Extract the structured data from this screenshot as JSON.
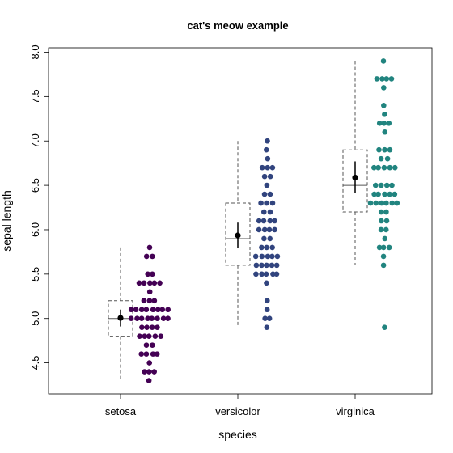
{
  "chart_data": {
    "type": "box-strip",
    "title": "cat's meow example",
    "xlabel": "species",
    "ylabel": "sepal length",
    "ylim": [
      4.15,
      8.05
    ],
    "yticks": [
      4.5,
      5.0,
      5.5,
      6.0,
      6.5,
      7.0,
      7.5,
      8.0
    ],
    "ytick_labels": [
      "4.5",
      "5.0",
      "5.5",
      "6.0",
      "6.5",
      "7.0",
      "7.5",
      "8.0"
    ],
    "categories": [
      "setosa",
      "versicolor",
      "virginica"
    ],
    "grid": false,
    "legend": "none",
    "series": [
      {
        "category": "setosa",
        "color": "#440154",
        "box": {
          "min": 4.3,
          "q1": 4.8,
          "median": 5.0,
          "q3": 5.2,
          "max": 5.8
        },
        "mean": 5.006,
        "ci": [
          4.91,
          5.1
        ],
        "values": [
          5.1,
          4.9,
          4.7,
          4.6,
          5.0,
          5.4,
          4.6,
          5.0,
          4.4,
          4.9,
          5.4,
          4.8,
          4.8,
          4.3,
          5.8,
          5.7,
          5.4,
          5.1,
          5.7,
          5.1,
          5.4,
          5.1,
          4.6,
          5.1,
          4.8,
          5.0,
          5.0,
          5.2,
          5.2,
          4.7,
          4.8,
          5.4,
          5.2,
          5.5,
          4.9,
          5.0,
          5.5,
          4.9,
          4.4,
          5.1,
          5.0,
          4.5,
          4.4,
          5.0,
          5.1,
          4.8,
          5.1,
          4.6,
          5.3,
          5.0
        ]
      },
      {
        "category": "versicolor",
        "color": "#31447e",
        "box": {
          "min": 4.9,
          "q1": 5.6,
          "median": 5.9,
          "q3": 6.3,
          "max": 7.0
        },
        "mean": 5.936,
        "ci": [
          5.79,
          6.08
        ],
        "values": [
          7.0,
          6.4,
          6.9,
          5.5,
          6.5,
          5.7,
          6.3,
          4.9,
          6.6,
          5.2,
          5.0,
          5.9,
          6.0,
          6.1,
          5.6,
          6.7,
          5.6,
          5.8,
          6.2,
          5.6,
          5.9,
          6.1,
          6.3,
          6.1,
          6.4,
          6.6,
          6.8,
          6.7,
          6.0,
          5.7,
          5.5,
          5.5,
          5.8,
          6.0,
          5.4,
          6.0,
          6.7,
          6.3,
          5.6,
          5.5,
          5.5,
          6.1,
          5.8,
          5.0,
          5.6,
          5.7,
          5.7,
          6.2,
          5.1,
          5.7
        ]
      },
      {
        "category": "virginica",
        "color": "#21847f",
        "box": {
          "min": 5.6,
          "q1": 6.2,
          "median": 6.5,
          "q3": 6.9,
          "max": 7.9
        },
        "outliers": [
          4.9
        ],
        "mean": 6.588,
        "ci": [
          6.41,
          6.77
        ],
        "values": [
          6.3,
          5.8,
          7.1,
          6.3,
          6.5,
          7.6,
          4.9,
          7.3,
          6.7,
          7.2,
          6.5,
          6.4,
          6.8,
          5.7,
          5.8,
          6.4,
          6.5,
          7.7,
          7.7,
          6.0,
          6.9,
          5.6,
          7.7,
          6.3,
          6.7,
          7.2,
          6.2,
          6.1,
          6.4,
          7.2,
          7.4,
          7.9,
          6.4,
          6.3,
          6.1,
          7.7,
          6.3,
          6.4,
          6.0,
          6.9,
          6.7,
          6.9,
          5.8,
          6.8,
          6.7,
          6.7,
          6.3,
          6.5,
          6.2,
          5.9
        ]
      }
    ]
  }
}
